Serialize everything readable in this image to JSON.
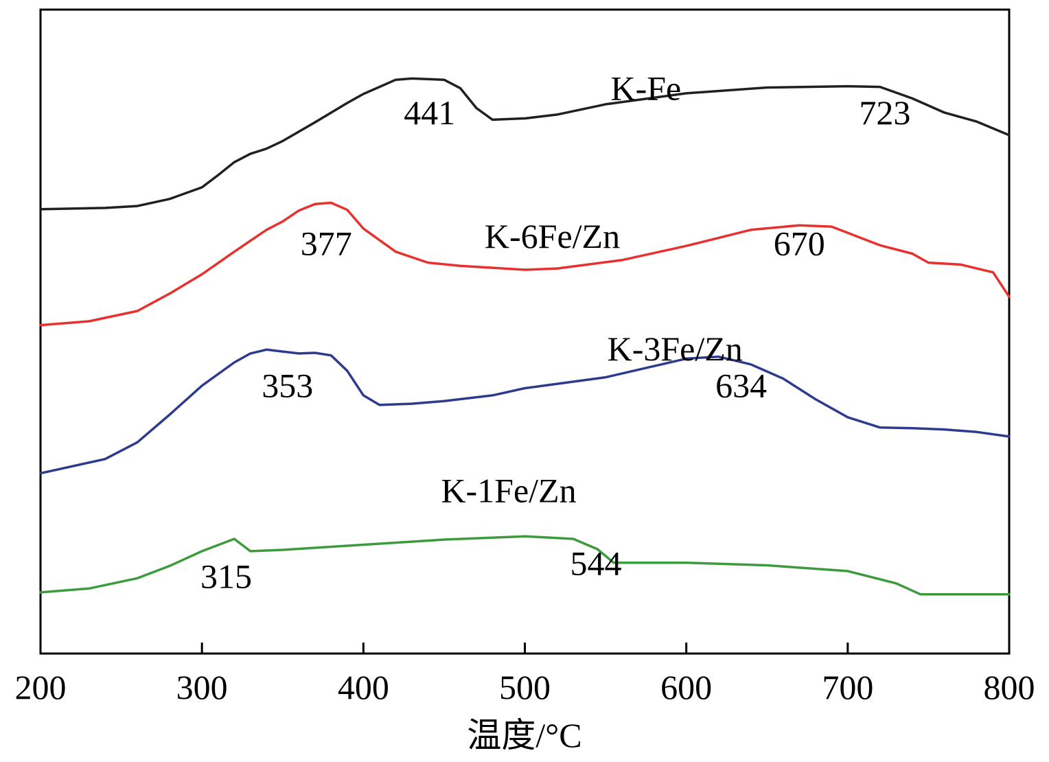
{
  "chart_data": {
    "type": "line",
    "xlabel": "温度/°C",
    "ylabel": "",
    "xlim": [
      200,
      800
    ],
    "x_ticks": [
      200,
      300,
      400,
      500,
      600,
      700,
      800
    ],
    "x_tick_labels": [
      "200",
      "300",
      "400",
      "500",
      "600",
      "700",
      "800"
    ],
    "ylim": [
      0,
      100
    ],
    "y_ticks_shown": false,
    "grid": false,
    "legend": "none",
    "series": [
      {
        "name": "K-Fe",
        "color": "#231f20",
        "label_at": [
          575,
          86
        ],
        "points": [
          [
            200,
            69
          ],
          [
            240,
            69.2
          ],
          [
            260,
            69.5
          ],
          [
            280,
            70.6
          ],
          [
            300,
            72.4
          ],
          [
            310,
            74.3
          ],
          [
            320,
            76.3
          ],
          [
            330,
            77.6
          ],
          [
            340,
            78.4
          ],
          [
            350,
            79.6
          ],
          [
            370,
            82.5
          ],
          [
            390,
            85.5
          ],
          [
            400,
            86.9
          ],
          [
            420,
            89.1
          ],
          [
            430,
            89.3
          ],
          [
            450,
            89.1
          ],
          [
            460,
            87.8
          ],
          [
            470,
            84.7
          ],
          [
            480,
            82.9
          ],
          [
            500,
            83.1
          ],
          [
            520,
            83.7
          ],
          [
            550,
            85.3
          ],
          [
            600,
            87.0
          ],
          [
            650,
            87.9
          ],
          [
            700,
            88.1
          ],
          [
            720,
            88.0
          ],
          [
            740,
            86.2
          ],
          [
            760,
            84.0
          ],
          [
            780,
            82.6
          ],
          [
            800,
            80.5
          ]
        ],
        "peaks": [
          {
            "label": "441",
            "x": 441,
            "y": 82.2
          },
          {
            "label": "723",
            "x": 723,
            "y": 82.2
          }
        ]
      },
      {
        "name": "K-6Fe/Zn",
        "color": "#e8302e",
        "label_at": [
          517,
          63
        ],
        "points": [
          [
            200,
            51
          ],
          [
            230,
            51.6
          ],
          [
            260,
            53.2
          ],
          [
            280,
            55.9
          ],
          [
            300,
            58.9
          ],
          [
            320,
            62.4
          ],
          [
            340,
            65.8
          ],
          [
            350,
            67.1
          ],
          [
            360,
            68.8
          ],
          [
            370,
            69.8
          ],
          [
            380,
            70.0
          ],
          [
            390,
            68.9
          ],
          [
            400,
            66.0
          ],
          [
            420,
            62.4
          ],
          [
            440,
            60.7
          ],
          [
            460,
            60.2
          ],
          [
            500,
            59.6
          ],
          [
            520,
            59.8
          ],
          [
            560,
            61.1
          ],
          [
            600,
            63.3
          ],
          [
            640,
            65.8
          ],
          [
            670,
            66.5
          ],
          [
            690,
            66.3
          ],
          [
            720,
            63.4
          ],
          [
            740,
            62.1
          ],
          [
            750,
            60.7
          ],
          [
            770,
            60.4
          ],
          [
            790,
            59.2
          ],
          [
            800,
            55.4
          ]
        ],
        "peaks": [
          {
            "label": "377",
            "x": 377,
            "y": 61.9
          },
          {
            "label": "670",
            "x": 670,
            "y": 61.9
          }
        ]
      },
      {
        "name": "K-3Fe/Zn",
        "color": "#2e3b8c",
        "label_at": [
          593,
          45.5
        ],
        "points": [
          [
            200,
            28
          ],
          [
            240,
            30.2
          ],
          [
            260,
            32.8
          ],
          [
            280,
            37.1
          ],
          [
            300,
            41.6
          ],
          [
            320,
            45.2
          ],
          [
            330,
            46.6
          ],
          [
            340,
            47.2
          ],
          [
            350,
            46.9
          ],
          [
            360,
            46.6
          ],
          [
            370,
            46.7
          ],
          [
            380,
            46.3
          ],
          [
            390,
            43.9
          ],
          [
            400,
            40.1
          ],
          [
            410,
            38.6
          ],
          [
            430,
            38.8
          ],
          [
            450,
            39.2
          ],
          [
            480,
            40.1
          ],
          [
            500,
            41.2
          ],
          [
            550,
            42.9
          ],
          [
            600,
            45.8
          ],
          [
            620,
            46.1
          ],
          [
            640,
            44.9
          ],
          [
            660,
            42.7
          ],
          [
            680,
            39.5
          ],
          [
            700,
            36.7
          ],
          [
            720,
            35.1
          ],
          [
            740,
            35.0
          ],
          [
            760,
            34.8
          ],
          [
            780,
            34.4
          ],
          [
            800,
            33.7
          ]
        ],
        "peaks": [
          {
            "label": "353",
            "x": 353,
            "y": 39.8
          },
          {
            "label": "634",
            "x": 634,
            "y": 39.8
          }
        ]
      },
      {
        "name": "K-1Fe/Zn",
        "color": "#3d9a3d",
        "label_at": [
          490,
          23.5
        ],
        "points": [
          [
            200,
            9.5
          ],
          [
            230,
            10.1
          ],
          [
            260,
            11.7
          ],
          [
            280,
            13.6
          ],
          [
            300,
            15.9
          ],
          [
            320,
            17.8
          ],
          [
            330,
            15.9
          ],
          [
            350,
            16.1
          ],
          [
            400,
            16.9
          ],
          [
            450,
            17.7
          ],
          [
            500,
            18.2
          ],
          [
            530,
            17.8
          ],
          [
            545,
            16.2
          ],
          [
            555,
            14.1
          ],
          [
            600,
            14.1
          ],
          [
            650,
            13.7
          ],
          [
            700,
            12.8
          ],
          [
            730,
            10.9
          ],
          [
            745,
            9.2
          ],
          [
            760,
            9.2
          ],
          [
            800,
            9.2
          ]
        ],
        "peaks": [
          {
            "label": "315",
            "x": 315,
            "y": 10.2
          },
          {
            "label": "544",
            "x": 544,
            "y": 12.2
          }
        ]
      }
    ]
  }
}
